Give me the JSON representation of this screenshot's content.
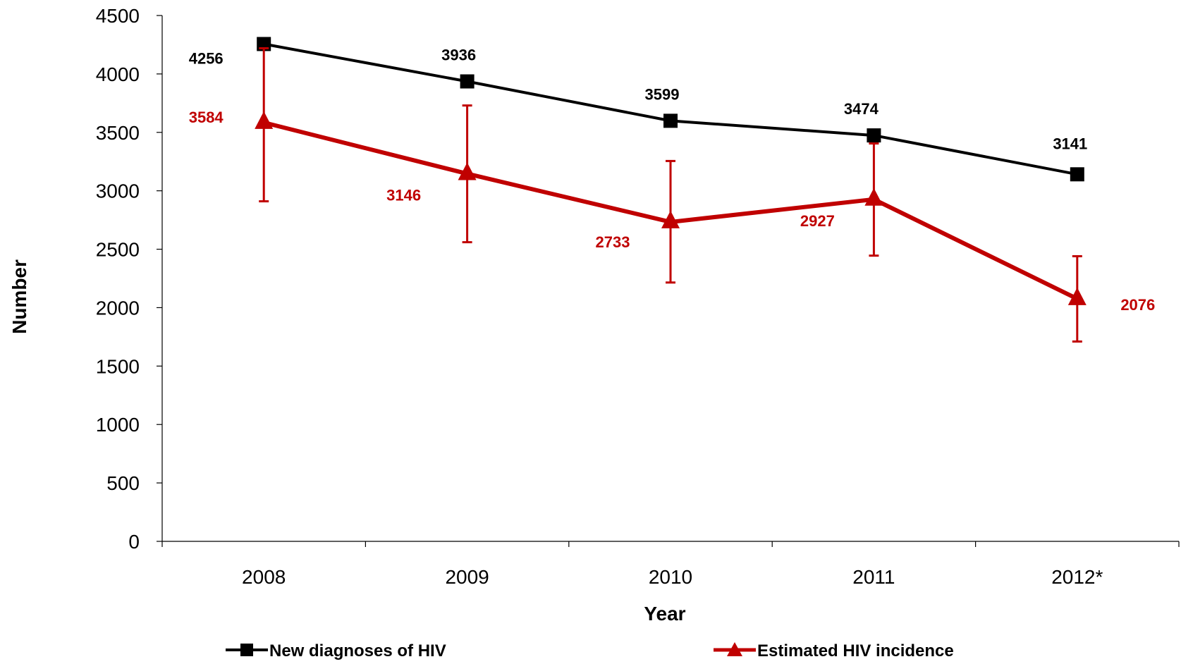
{
  "chart_data": {
    "type": "line",
    "title": "",
    "xlabel": "Year",
    "ylabel": "Number",
    "categories": [
      "2008",
      "2009",
      "2010",
      "2011",
      "2012*"
    ],
    "ylim": [
      0,
      4500
    ],
    "yticks": [
      0,
      500,
      1000,
      1500,
      2000,
      2500,
      3000,
      3500,
      4000,
      4500
    ],
    "grid": false,
    "legend_position": "bottom",
    "series": [
      {
        "name": "New diagnoses of HIV",
        "color": "#000000",
        "marker": "square",
        "values": [
          4256,
          3936,
          3599,
          3474,
          3141
        ],
        "labels": [
          "4256",
          "3936",
          "3599",
          "3474",
          "3141"
        ]
      },
      {
        "name": "Estimated HIV incidence",
        "color": "#c00000",
        "marker": "triangle",
        "values": [
          3584,
          3146,
          2733,
          2927,
          2076
        ],
        "labels": [
          "3584",
          "3146",
          "2733",
          "2927",
          "2076"
        ],
        "error_low": [
          2910,
          2560,
          2215,
          2445,
          1710
        ],
        "error_high": [
          4220,
          3730,
          3255,
          3405,
          2440
        ]
      }
    ]
  }
}
